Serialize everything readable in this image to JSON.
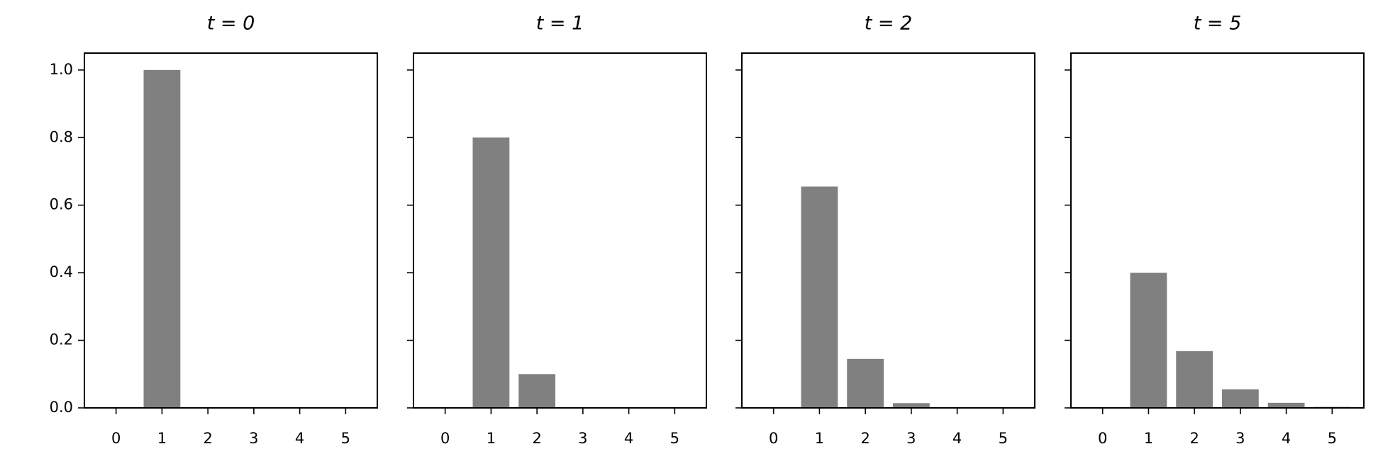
{
  "chart_data": [
    {
      "type": "bar",
      "title": "t = 0",
      "x": [
        0,
        1,
        2,
        3,
        4,
        5
      ],
      "values": [
        0,
        1.0,
        0,
        0,
        0,
        0
      ],
      "color": "#808080",
      "xlim": [
        -0.69,
        5.69
      ],
      "xticks": [
        0,
        1,
        2,
        3,
        4,
        5
      ],
      "ylim": [
        0,
        1.05
      ],
      "yticks": [
        {
          "value": 0,
          "label": "0.0"
        },
        {
          "value": 0.2,
          "label": "0.2"
        },
        {
          "value": 0.4,
          "label": "0.4"
        },
        {
          "value": 0.6,
          "label": "0.6"
        },
        {
          "value": 0.8,
          "label": "0.8"
        },
        {
          "value": 1.0,
          "label": "1.0"
        }
      ]
    },
    {
      "type": "bar",
      "title": "t = 1",
      "x": [
        0,
        1,
        2,
        3,
        4,
        5
      ],
      "values": [
        0,
        0.8,
        0.1,
        0,
        0,
        0
      ],
      "color": "#808080",
      "xlim": [
        -0.69,
        5.69
      ],
      "xticks": [
        0,
        1,
        2,
        3,
        4,
        5
      ],
      "ylim": [
        0,
        1.05
      ],
      "yticks": [
        0,
        0.2,
        0.4,
        0.6,
        0.8,
        1
      ]
    },
    {
      "type": "bar",
      "title": "t = 2",
      "x": [
        0,
        1,
        2,
        3,
        4,
        5
      ],
      "values": [
        0,
        0.655,
        0.145,
        0.014,
        0,
        0
      ],
      "color": "#808080",
      "xlim": [
        -0.69,
        5.69
      ],
      "xticks": [
        0,
        1,
        2,
        3,
        4,
        5
      ],
      "ylim": [
        0,
        1.05
      ],
      "yticks": [
        0,
        0.2,
        0.4,
        0.6,
        0.8,
        1
      ]
    },
    {
      "type": "bar",
      "title": "t = 5",
      "x": [
        0,
        1,
        2,
        3,
        4,
        5
      ],
      "values": [
        0,
        0.4,
        0.168,
        0.055,
        0.015,
        0.003
      ],
      "color": "#808080",
      "xlim": [
        -0.69,
        5.69
      ],
      "xticks": [
        0,
        1,
        2,
        3,
        4,
        5
      ],
      "ylim": [
        0,
        1.05
      ],
      "yticks": [
        0,
        0.2,
        0.4,
        0.6,
        0.8,
        1
      ]
    }
  ]
}
